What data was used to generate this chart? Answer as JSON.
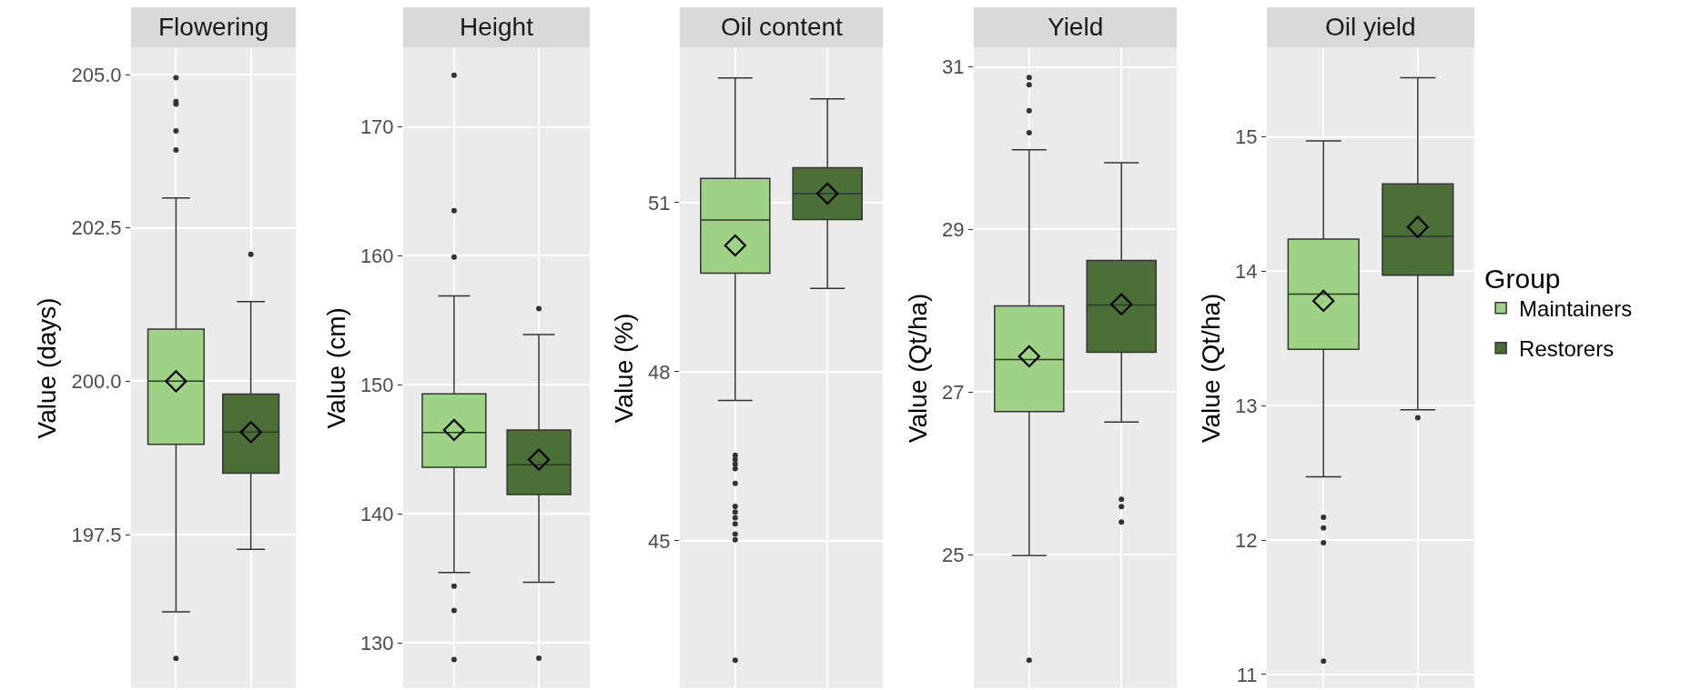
{
  "chart_data": [
    {
      "type": "box",
      "title": "Flowering",
      "ylabel": "Value (days)",
      "categories": [
        null,
        null
      ],
      "ylim": [
        195.0,
        205.43
      ],
      "yticks": [
        {
          "value": 197.5,
          "label": "197.5"
        },
        {
          "value": 200,
          "label": "200.0"
        },
        {
          "value": 202.5,
          "label": "202.5"
        },
        {
          "value": 205,
          "label": "205.0"
        }
      ],
      "grid": true,
      "tick_labels": "y",
      "legend": false,
      "series": [
        {
          "color": "#9ed284",
          "boxes": [
            {
              "low": 196.24,
              "q1": 198.97,
              "median": 200.0,
              "q3": 200.85,
              "high": 202.99,
              "outliers": [
                204.95,
                204.56,
                204.52,
                204.08,
                203.77,
                195.48
              ]
            },
            null
          ]
        },
        {
          "color": "#4a7038",
          "boxes": [
            null,
            {
              "low": 197.26,
              "q1": 198.5,
              "median": 199.17,
              "q3": 199.79,
              "high": 201.3,
              "outliers": [
                202.07
              ]
            }
          ]
        },
        {
          "type": "scatter",
          "color": "#000000",
          "marker": "diamond",
          "values": [
            200.0,
            199.17
          ]
        }
      ]
    },
    {
      "type": "box",
      "title": "Height",
      "ylabel": "Value (cm)",
      "categories": [
        null,
        null
      ],
      "ylim": [
        126.5,
        176.1
      ],
      "yticks": [
        130,
        140,
        150,
        160,
        170
      ],
      "grid": true,
      "tick_labels": "y",
      "legend": false,
      "series": [
        {
          "color": "#9ed284",
          "boxes": [
            {
              "low": 135.45,
              "q1": 143.6,
              "median": 146.3,
              "q3": 149.3,
              "high": 156.9,
              "outliers": [
                174.0,
                163.5,
                159.9,
                134.4,
                132.5,
                128.7
              ]
            },
            null
          ]
        },
        {
          "color": "#4a7038",
          "boxes": [
            null,
            {
              "low": 134.7,
              "q1": 141.5,
              "median": 143.8,
              "q3": 146.5,
              "high": 153.9,
              "outliers": [
                155.9,
                128.8
              ]
            }
          ]
        },
        {
          "type": "scatter",
          "color": "#000000",
          "marker": "diamond",
          "values": [
            146.5,
            144.2
          ]
        }
      ]
    },
    {
      "type": "box",
      "title": "Oil content",
      "ylabel": "Value (%)",
      "categories": [
        null,
        null
      ],
      "ylim": [
        42.39,
        53.74
      ],
      "yticks": [
        45,
        48,
        51
      ],
      "grid": true,
      "tick_labels": "y",
      "legend": false,
      "series": [
        {
          "color": "#9ed284",
          "boxes": [
            {
              "low": 47.49,
              "q1": 49.75,
              "median": 50.69,
              "q3": 51.43,
              "high": 53.21,
              "outliers": [
                46.52,
                46.44,
                46.36,
                46.28,
                46.02,
                45.61,
                45.51,
                45.41,
                45.3,
                45.12,
                45.02,
                42.88
              ]
            },
            null
          ]
        },
        {
          "color": "#4a7038",
          "boxes": [
            null,
            {
              "low": 49.48,
              "q1": 50.7,
              "median": 51.16,
              "q3": 51.62,
              "high": 52.84
            }
          ]
        },
        {
          "type": "scatter",
          "color": "#000000",
          "marker": "diamond",
          "values": [
            50.24,
            51.16
          ]
        }
      ]
    },
    {
      "type": "box",
      "title": "Yield",
      "ylabel": "Value (Qt/ha)",
      "categories": [
        null,
        null
      ],
      "ylim": [
        23.36,
        31.23
      ],
      "yticks": [
        25,
        27,
        29,
        31
      ],
      "grid": true,
      "tick_labels": "y",
      "legend": false,
      "series": [
        {
          "color": "#9ed284",
          "boxes": [
            {
              "low": 24.99,
              "q1": 26.76,
              "median": 27.4,
              "q3": 28.06,
              "high": 29.98,
              "outliers": [
                30.87,
                30.78,
                30.46,
                30.19,
                23.7
              ]
            },
            null
          ]
        },
        {
          "color": "#4a7038",
          "boxes": [
            null,
            {
              "low": 26.63,
              "q1": 27.49,
              "median": 28.07,
              "q3": 28.62,
              "high": 29.82,
              "outliers": [
                25.68,
                25.59,
                25.4
              ]
            }
          ]
        },
        {
          "type": "scatter",
          "color": "#000000",
          "marker": "diamond",
          "values": [
            27.44,
            28.08
          ]
        }
      ]
    },
    {
      "type": "box",
      "title": "Oil yield",
      "ylabel": "Value (Qt/ha)",
      "categories": [
        null,
        null
      ],
      "ylim": [
        10.9,
        15.66
      ],
      "yticks": [
        11,
        12,
        13,
        14,
        15
      ],
      "grid": true,
      "tick_labels": "y",
      "legend": "right",
      "legend_title": "Group",
      "series": [
        {
          "name": "Maintainers",
          "color": "#9ed284",
          "boxes": [
            {
              "low": 12.47,
              "q1": 13.42,
              "median": 13.83,
              "q3": 14.24,
              "high": 14.97,
              "outliers": [
                12.17,
                12.09,
                11.98,
                11.1
              ]
            },
            null
          ]
        },
        {
          "name": "Restorers",
          "color": "#4a7038",
          "boxes": [
            null,
            {
              "low": 12.97,
              "q1": 13.97,
              "median": 14.26,
              "q3": 14.65,
              "high": 15.44,
              "outliers": [
                12.91
              ]
            }
          ]
        },
        {
          "type": "scatter",
          "color": "#000000",
          "marker": "diamond",
          "values": [
            13.78,
            14.33
          ]
        }
      ]
    }
  ]
}
